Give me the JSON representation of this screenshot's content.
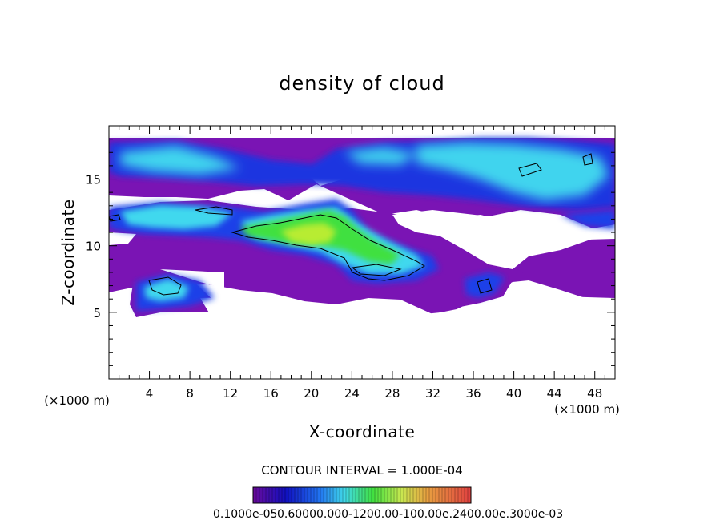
{
  "chart_data": {
    "type": "heatmap",
    "title": "density of cloud",
    "xlabel": "X-coordinate",
    "ylabel": "Z-coordinate",
    "x_unit": "(×1000 m)",
    "z_unit": "(×1000 m)",
    "xlim": [
      0,
      50
    ],
    "ylim": [
      0,
      19
    ],
    "xticks": [
      "4",
      "8",
      "12",
      "16",
      "20",
      "24",
      "28",
      "32",
      "36",
      "40",
      "44",
      "48"
    ],
    "yticks": [
      "5",
      "10",
      "15"
    ],
    "contour_interval": "CONTOUR INTERVAL = 1.000E-04",
    "colorbar_labels": "0.1000e-05",
    "colorbar_overlap_text": "0.60000.000-1200.00-100.00e.2400.00e.3000e-03",
    "cloud_regions": [
      {
        "level": "low",
        "x": [
          0,
          50
        ],
        "z": [
          15,
          19
        ]
      },
      {
        "level": "mid",
        "x": [
          0,
          50
        ],
        "z": [
          9.5,
          13.5
        ]
      },
      {
        "level": "high",
        "x": [
          15,
          25
        ],
        "z": [
          10,
          13
        ]
      },
      {
        "level": "low",
        "x": [
          1,
          11
        ],
        "z": [
          5,
          8.5
        ]
      },
      {
        "level": "low",
        "x": [
          32,
          40
        ],
        "z": [
          5.5,
          8.5
        ]
      }
    ],
    "colors": {
      "purple": "#7a14b4",
      "blue": "#1030e0",
      "cyan": "#40d8f0",
      "green": "#44e844",
      "yellowgreen": "#b8ec30"
    }
  }
}
